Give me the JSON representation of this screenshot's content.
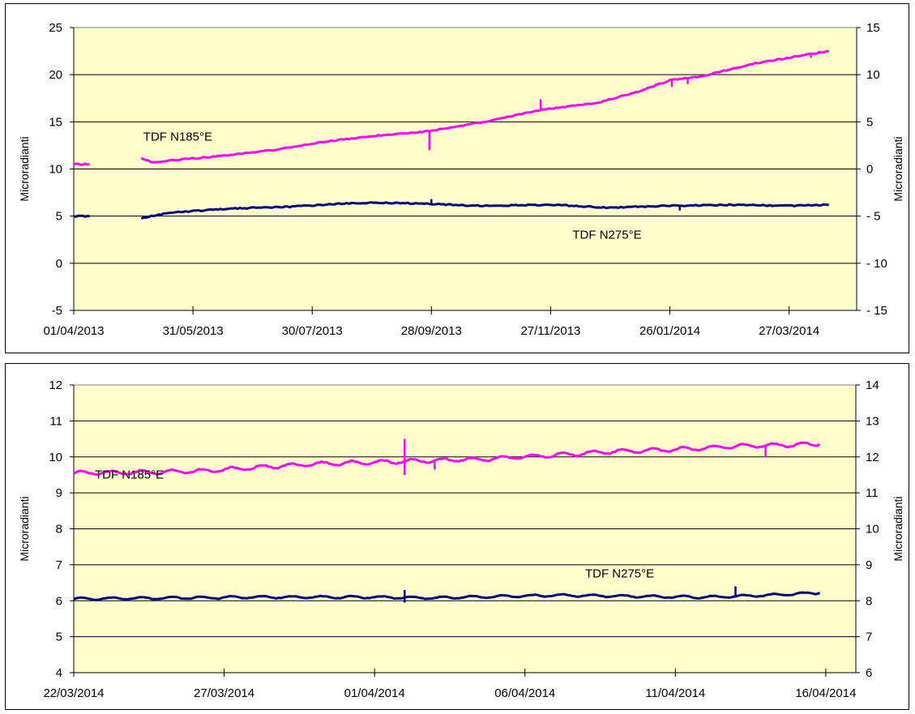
{
  "chart_data": [
    {
      "type": "line",
      "title": "",
      "ylabel": "Microradianti",
      "y2label": "Microradianti",
      "ylim": [
        -5,
        25
      ],
      "y2lim": [
        -15,
        15
      ],
      "yticks": [
        -5,
        0,
        5,
        10,
        15,
        20,
        25
      ],
      "y2ticks": [
        -15,
        -10,
        -5,
        0,
        5,
        10,
        15
      ],
      "xlim": [
        "2013-04-01",
        "2014-04-30"
      ],
      "xtick_labels": [
        "01/04/2013",
        "31/05/2013",
        "30/07/2013",
        "28/09/2013",
        "27/11/2013",
        "26/01/2014",
        "27/03/2014"
      ],
      "xtick_dates": [
        "2013-04-01",
        "2013-05-31",
        "2013-07-30",
        "2013-09-28",
        "2013-11-27",
        "2014-01-26",
        "2014-03-27"
      ],
      "plot_background": "#ffffcc",
      "grid": true,
      "series": [
        {
          "name": "TDF N185°E",
          "color": "#ff00ff",
          "axis": "left",
          "points": [
            [
              "2013-04-01",
              10.5
            ],
            [
              "2013-04-09",
              10.5
            ],
            null,
            [
              "2013-05-05",
              11.1
            ],
            [
              "2013-05-11",
              10.7
            ],
            [
              "2013-05-25",
              11.0
            ],
            [
              "2013-06-15",
              11.4
            ],
            [
              "2013-07-10",
              12.0
            ],
            [
              "2013-08-05",
              12.9
            ],
            [
              "2013-08-30",
              13.5
            ],
            [
              "2013-09-27",
              14.0
            ],
            [
              "2013-10-25",
              15.0
            ],
            [
              "2013-11-20",
              16.2
            ],
            [
              "2013-12-20",
              17.0
            ],
            [
              "2014-01-10",
              18.2
            ],
            [
              "2014-01-26",
              19.4
            ],
            [
              "2014-02-10",
              19.8
            ],
            [
              "2014-03-10",
              21.2
            ],
            [
              "2014-03-27",
              21.8
            ],
            [
              "2014-04-10",
              22.3
            ],
            [
              "2014-04-16",
              22.5
            ]
          ],
          "spikes": [
            [
              "2013-09-27",
              12.0
            ],
            [
              "2013-11-22",
              17.4
            ],
            [
              "2014-01-27",
              18.7
            ],
            [
              "2014-02-04",
              19.0
            ],
            [
              "2014-04-07",
              21.8
            ]
          ]
        },
        {
          "name": "TDF N275°E",
          "color": "#000080",
          "axis": "left",
          "points": [
            [
              "2013-04-01",
              5.0
            ],
            [
              "2013-04-09",
              5.0
            ],
            null,
            [
              "2013-05-05",
              4.8
            ],
            [
              "2013-05-20",
              5.4
            ],
            [
              "2013-06-20",
              5.8
            ],
            [
              "2013-07-20",
              6.0
            ],
            [
              "2013-08-20",
              6.4
            ],
            [
              "2013-09-10",
              6.4
            ],
            [
              "2013-09-28",
              6.3
            ],
            [
              "2013-10-20",
              6.1
            ],
            [
              "2013-11-30",
              6.2
            ],
            [
              "2013-12-25",
              5.9
            ],
            [
              "2014-01-26",
              6.1
            ],
            [
              "2014-02-25",
              6.2
            ],
            [
              "2014-03-27",
              6.1
            ],
            [
              "2014-04-16",
              6.2
            ]
          ],
          "spikes": [
            [
              "2013-09-28",
              6.8
            ],
            [
              "2014-01-31",
              5.6
            ]
          ]
        }
      ],
      "annotations": [
        {
          "text": "TDF N185°E",
          "series": "TDF N185°E",
          "x": "2013-05-06",
          "y": 13.0
        },
        {
          "text": "TDF N275°E",
          "series": "TDF N275°E",
          "x": "2013-12-08",
          "y": 2.6
        }
      ]
    },
    {
      "type": "line",
      "title": "",
      "ylabel": "Microradianti",
      "y2label": "Microradianti",
      "ylim": [
        4,
        12
      ],
      "y2lim": [
        6,
        14
      ],
      "yticks": [
        4,
        5,
        6,
        7,
        8,
        9,
        10,
        11,
        12
      ],
      "y2ticks": [
        6,
        7,
        8,
        9,
        10,
        11,
        12,
        13,
        14
      ],
      "xlim": [
        "2014-03-22",
        "2014-04-17"
      ],
      "xtick_labels": [
        "22/03/2014",
        "27/03/2014",
        "01/04/2014",
        "06/04/2014",
        "11/04/2014",
        "16/04/2014"
      ],
      "xtick_dates": [
        "2014-03-22",
        "2014-03-27",
        "2014-04-01",
        "2014-04-06",
        "2014-04-11",
        "2014-04-16"
      ],
      "plot_background": "#ffffcc",
      "grid": true,
      "series": [
        {
          "name": "TDF N185°E",
          "color": "#ff00ff",
          "axis": "left",
          "wiggle": 0.05,
          "points": [
            [
              "2014-03-22",
              9.55
            ],
            [
              "2014-03-25",
              9.58
            ],
            [
              "2014-03-26",
              9.6
            ],
            [
              "2014-03-28",
              9.7
            ],
            [
              "2014-03-30",
              9.8
            ],
            [
              "2014-04-01",
              9.85
            ],
            [
              "2014-04-03",
              9.9
            ],
            [
              "2014-04-05",
              9.95
            ],
            [
              "2014-04-07",
              10.05
            ],
            [
              "2014-04-09",
              10.15
            ],
            [
              "2014-04-11",
              10.2
            ],
            [
              "2014-04-13",
              10.3
            ],
            [
              "2014-04-15.8",
              10.35
            ]
          ],
          "spikes": [
            [
              "2014-04-02",
              10.5
            ],
            [
              "2014-04-02",
              9.5
            ],
            [
              "2014-04-03",
              9.65
            ],
            [
              "2014-04-14",
              10.0
            ]
          ]
        },
        {
          "name": "TDF N275°E",
          "color": "#000080",
          "axis": "left",
          "wiggle": 0.03,
          "points": [
            [
              "2014-03-22",
              6.05
            ],
            [
              "2014-03-28",
              6.1
            ],
            [
              "2014-04-01",
              6.1
            ],
            [
              "2014-04-03",
              6.08
            ],
            [
              "2014-04-07",
              6.15
            ],
            [
              "2014-04-10",
              6.12
            ],
            [
              "2014-04-12",
              6.1
            ],
            [
              "2014-04-14",
              6.15
            ],
            [
              "2014-04-15.8",
              6.22
            ]
          ],
          "spikes": [
            [
              "2014-04-02",
              6.3
            ],
            [
              "2014-04-02",
              5.95
            ],
            [
              "2014-04-13",
              6.4
            ]
          ]
        }
      ],
      "annotations": [
        {
          "text": "TDF N185°E",
          "series": "TDF N185°E",
          "x": "2014-03-22.7",
          "y": 9.4
        },
        {
          "text": "TDF N275°E",
          "series": "TDF N275°E",
          "x": "2014-04-08",
          "y": 6.65
        }
      ]
    }
  ]
}
